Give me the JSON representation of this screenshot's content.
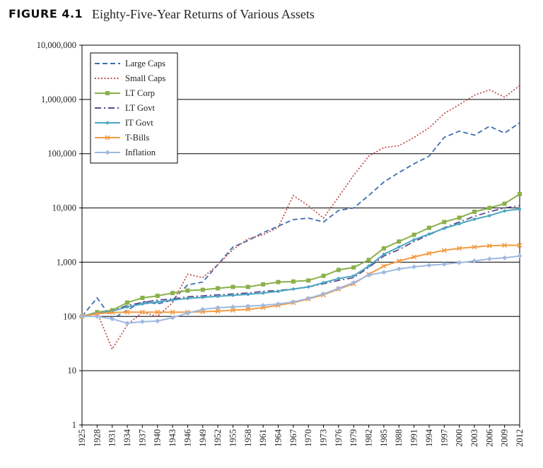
{
  "figure": {
    "label": "FIGURE 4.1",
    "title": "Eighty-Five-Year Returns of Various Assets"
  },
  "chart_data": {
    "type": "line",
    "title": "Eighty-Five-Year Returns of Various Assets",
    "xlabel": "",
    "ylabel": "",
    "y_scale": "log",
    "ylim": [
      1,
      10000000
    ],
    "xlim": [
      1925,
      2012
    ],
    "grid": "horizontal gridlines at each power of ten",
    "legend_position": "top-left",
    "x_tick_labels": [
      "1925",
      "1928",
      "1931",
      "1934",
      "1937",
      "1940",
      "1943",
      "1946",
      "1949",
      "1952",
      "1955",
      "1958",
      "1961",
      "1964",
      "1967",
      "1970",
      "1973",
      "1976",
      "1979",
      "1982",
      "1985",
      "1988",
      "1991",
      "1994",
      "1997",
      "2000",
      "2003",
      "2006",
      "2009",
      "2012"
    ],
    "y_tick_labels": [
      "1",
      "10",
      "100",
      "1,000",
      "10,000",
      "100,000",
      "1,000,000",
      "10,000,000"
    ],
    "y_tick_values": [
      1,
      10,
      100,
      1000,
      10000,
      100000,
      1000000,
      10000000
    ],
    "x": [
      1925,
      1928,
      1931,
      1934,
      1937,
      1940,
      1943,
      1946,
      1949,
      1952,
      1955,
      1958,
      1961,
      1964,
      1967,
      1970,
      1973,
      1976,
      1979,
      1982,
      1985,
      1988,
      1991,
      1994,
      1997,
      2000,
      2003,
      2006,
      2009,
      2012
    ],
    "series": [
      {
        "name": "Large Caps",
        "color": "#3e6fb0",
        "style": "dashed",
        "marker": "none",
        "values": [
          100,
          220,
          90,
          130,
          190,
          170,
          200,
          380,
          430,
          900,
          1900,
          2500,
          3500,
          4600,
          6100,
          6500,
          5500,
          9000,
          10000,
          17000,
          30000,
          45000,
          65000,
          90000,
          200000,
          260000,
          220000,
          320000,
          240000,
          370000
        ]
      },
      {
        "name": "Small Caps",
        "color": "#c0504d",
        "style": "dotted",
        "marker": "none",
        "values": [
          100,
          120,
          25,
          70,
          120,
          100,
          180,
          600,
          520,
          900,
          1700,
          2700,
          3200,
          4400,
          17000,
          11000,
          6500,
          16000,
          40000,
          90000,
          130000,
          140000,
          200000,
          300000,
          550000,
          800000,
          1200000,
          1500000,
          1100000,
          1800000
        ]
      },
      {
        "name": "LT Corp",
        "color": "#8bb04a",
        "style": "solid",
        "marker": "square",
        "values": [
          100,
          120,
          130,
          180,
          220,
          240,
          270,
          300,
          310,
          330,
          350,
          350,
          390,
          430,
          440,
          460,
          560,
          720,
          800,
          1100,
          1800,
          2400,
          3200,
          4300,
          5500,
          6600,
          8500,
          10000,
          12000,
          18000
        ]
      },
      {
        "name": "LT Govt",
        "color": "#5d4a8a",
        "style": "dashdot",
        "marker": "none",
        "values": [
          100,
          115,
          125,
          160,
          180,
          200,
          210,
          230,
          240,
          250,
          260,
          270,
          290,
          300,
          320,
          350,
          400,
          460,
          520,
          800,
          1300,
          1700,
          2400,
          3200,
          4300,
          5500,
          7000,
          8500,
          10000,
          11000
        ]
      },
      {
        "name": "IT Govt",
        "color": "#4ba6c3",
        "style": "solid",
        "marker": "dot",
        "values": [
          100,
          115,
          125,
          150,
          170,
          185,
          200,
          215,
          225,
          235,
          245,
          255,
          270,
          290,
          320,
          350,
          420,
          500,
          560,
          850,
          1400,
          1900,
          2600,
          3300,
          4200,
          5100,
          6200,
          7200,
          8800,
          9500
        ]
      },
      {
        "name": "T-Bills",
        "color": "#f29b43",
        "style": "solid",
        "marker": "x",
        "values": [
          100,
          112,
          118,
          120,
          120,
          120,
          120,
          120,
          122,
          125,
          130,
          135,
          145,
          160,
          180,
          210,
          250,
          320,
          400,
          600,
          850,
          1050,
          1250,
          1450,
          1650,
          1800,
          1900,
          2000,
          2050,
          2050
        ]
      },
      {
        "name": "Inflation",
        "color": "#9fb9df",
        "style": "solid",
        "marker": "diamond",
        "values": [
          100,
          100,
          90,
          75,
          80,
          82,
          95,
          115,
          135,
          145,
          150,
          155,
          160,
          170,
          185,
          215,
          260,
          330,
          420,
          580,
          650,
          750,
          820,
          880,
          920,
          980,
          1050,
          1150,
          1200,
          1300
        ]
      }
    ]
  }
}
